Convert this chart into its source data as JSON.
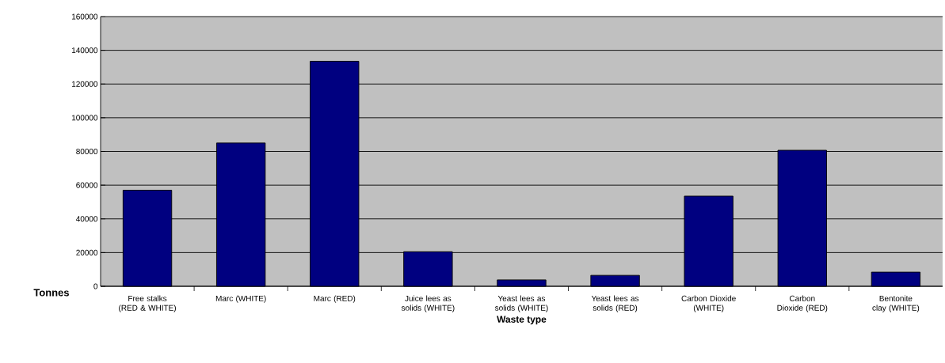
{
  "chart_data": {
    "type": "bar",
    "xlabel": "Waste type",
    "ylabel": "Tonnes",
    "categories": [
      "Free stalks (RED & WHITE)",
      "Marc (WHITE)",
      "Marc (RED)",
      "Juice lees as solids (WHITE)",
      "Yeast lees as solids (WHITE)",
      "Yeast lees as solids (RED)",
      "Carbon Dioxide (WHITE)",
      "Carbon Dioxide (RED)",
      "Bentonite clay (WHITE)"
    ],
    "values": [
      57000,
      85000,
      133500,
      20500,
      3800,
      6500,
      53500,
      80700,
      8400
    ],
    "color": "#000080",
    "ylim": [
      0,
      160000
    ],
    "yticks": [
      0,
      20000,
      40000,
      60000,
      80000,
      100000,
      120000,
      140000,
      160000
    ],
    "grid": "y"
  }
}
